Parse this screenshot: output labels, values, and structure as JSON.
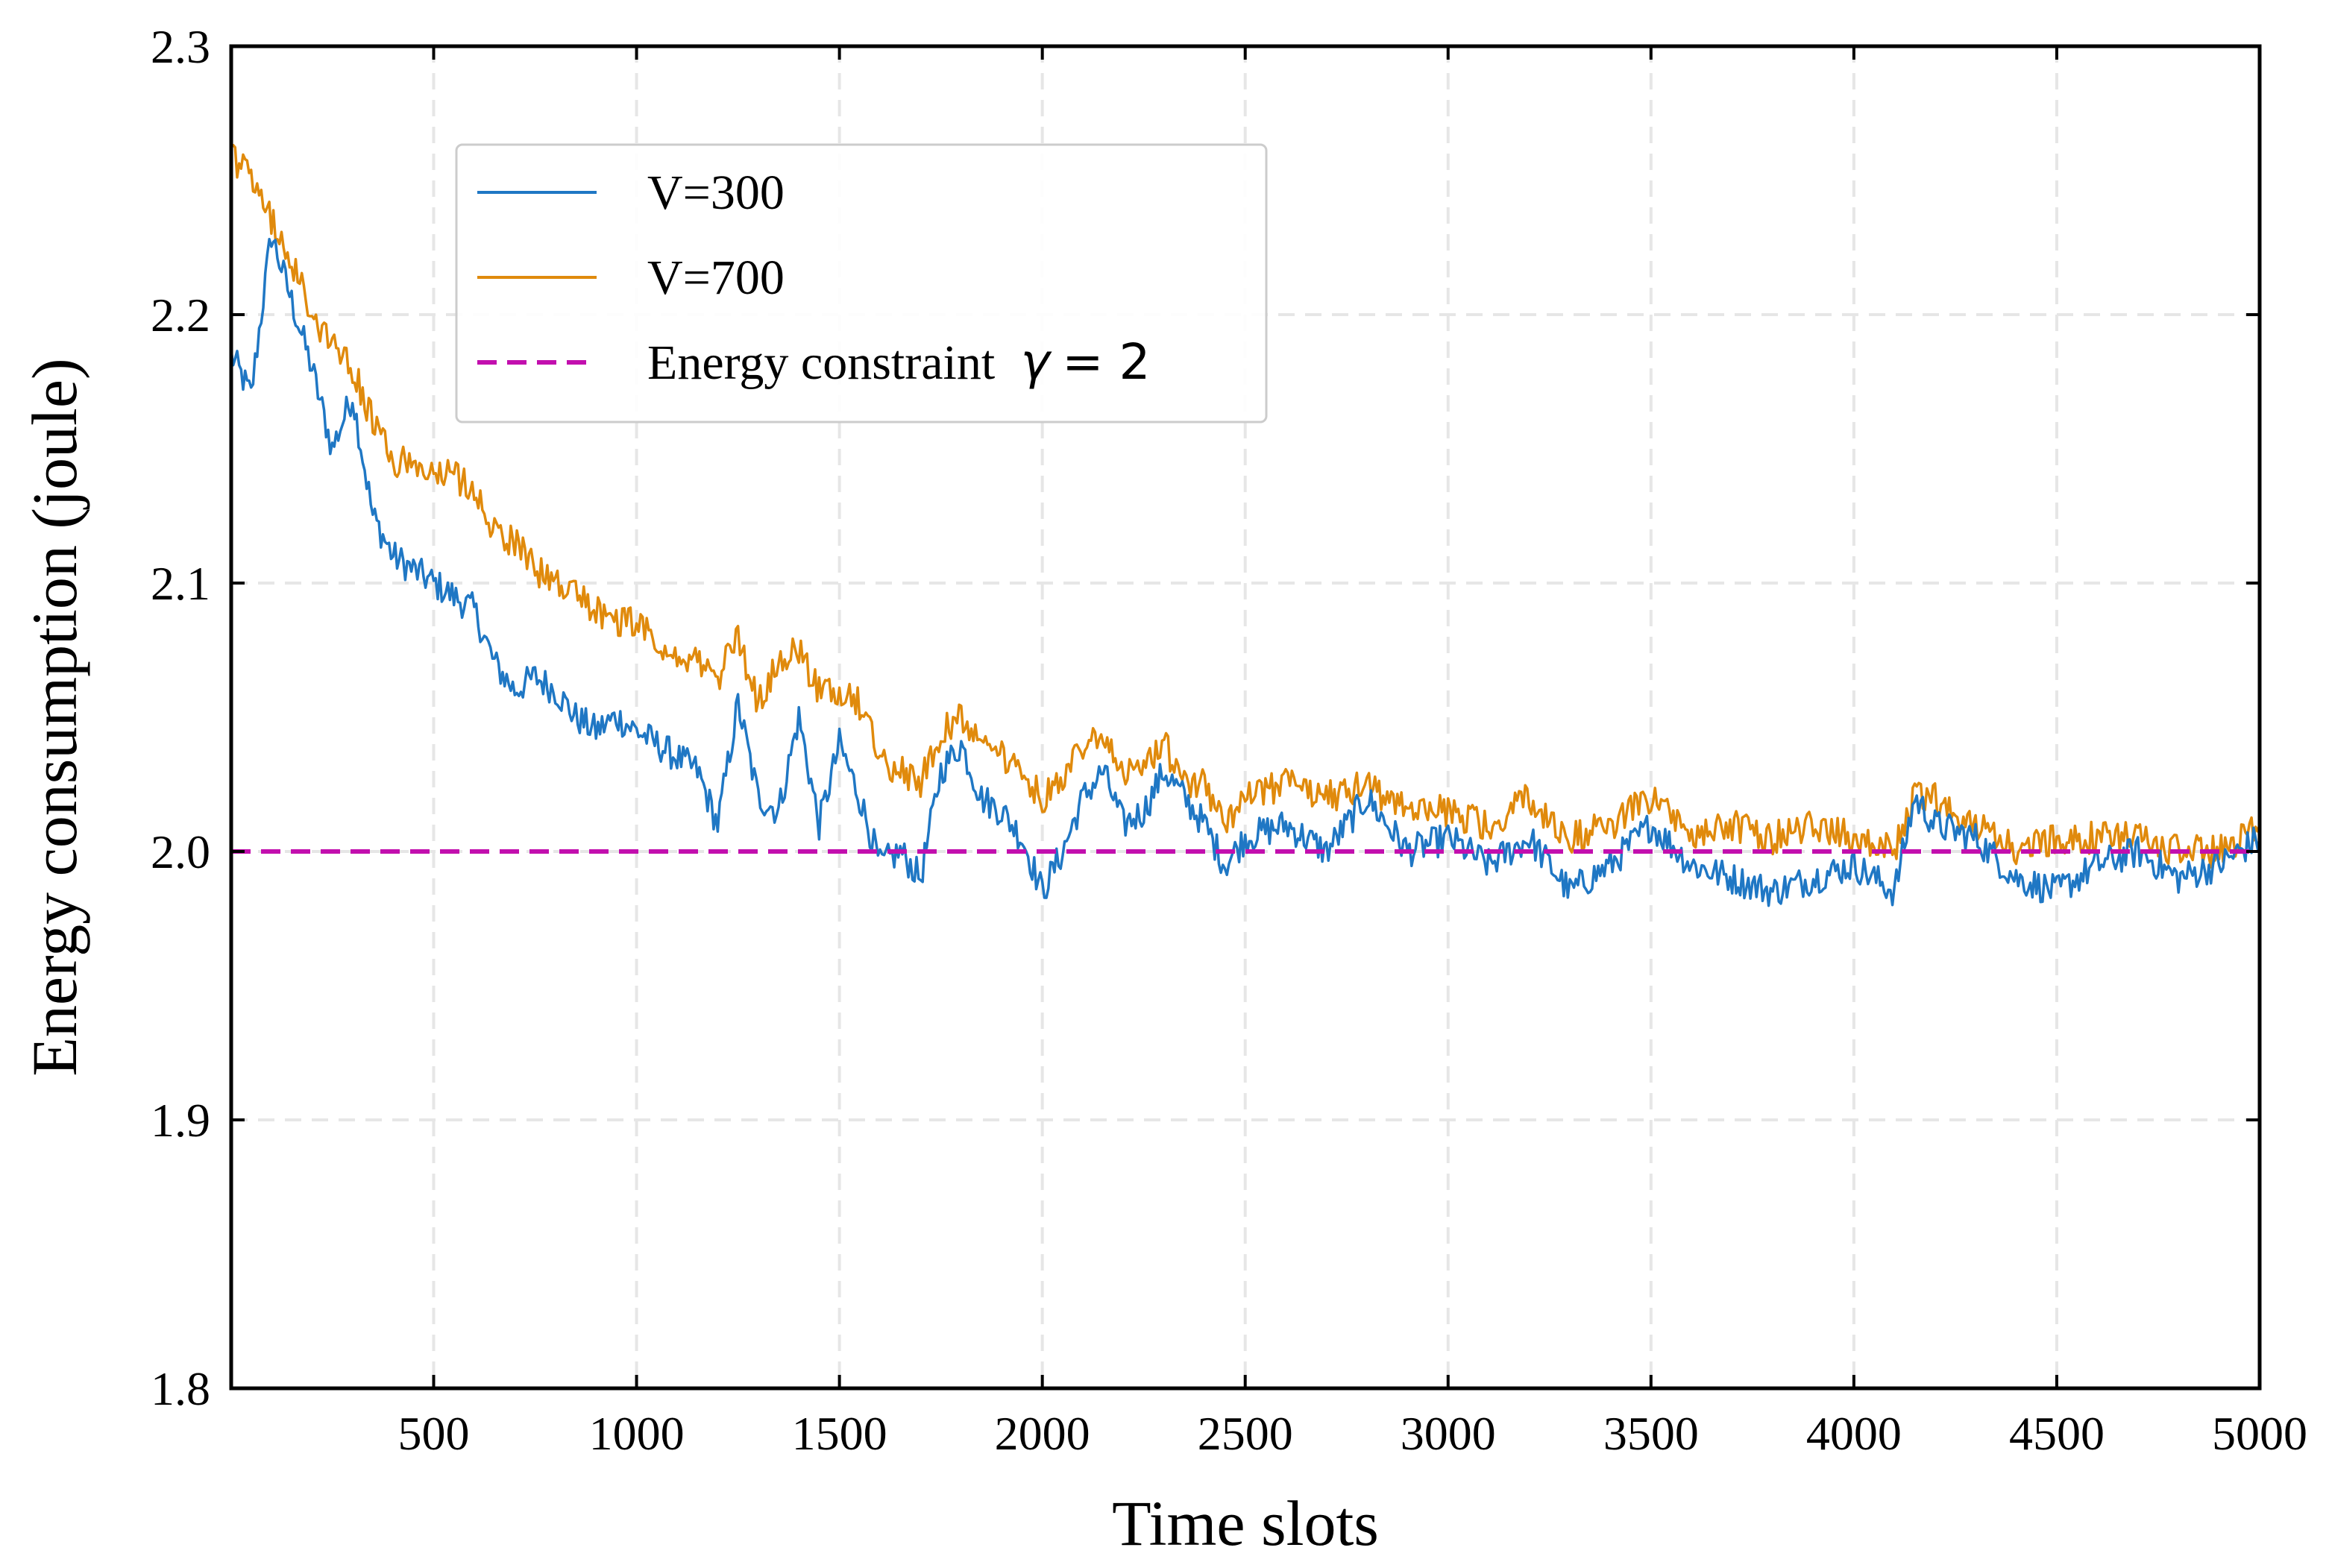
{
  "chart_data": {
    "type": "line",
    "title": "",
    "xlabel": "Time slots",
    "ylabel": "Energy consumption (joule)",
    "xlim": [
      1,
      5000
    ],
    "ylim": [
      1.8,
      2.3
    ],
    "x_ticks": [
      500,
      1000,
      1500,
      2000,
      2500,
      3000,
      3500,
      4000,
      4500,
      5000
    ],
    "x_tick_labels": [
      "500",
      "1000",
      "1500",
      "2000",
      "2500",
      "3000",
      "3500",
      "4000",
      "4500",
      "5000"
    ],
    "y_ticks": [
      1.8,
      1.9,
      2.0,
      2.1,
      2.2,
      2.3
    ],
    "y_tick_labels": [
      "1.8",
      "1.9",
      "2.0",
      "2.1",
      "2.2",
      "2.3"
    ],
    "grid": true,
    "legend_position": "top-left",
    "series": [
      {
        "name": "V=300",
        "color": "#1f77c4",
        "style": "solid",
        "x": [
          1,
          50,
          100,
          150,
          200,
          250,
          300,
          350,
          400,
          450,
          500,
          550,
          600,
          650,
          700,
          750,
          800,
          850,
          900,
          950,
          1000,
          1050,
          1100,
          1150,
          1200,
          1250,
          1300,
          1350,
          1400,
          1450,
          1500,
          1550,
          1600,
          1650,
          1700,
          1750,
          1800,
          1850,
          1900,
          1950,
          2000,
          2050,
          2100,
          2150,
          2200,
          2250,
          2300,
          2350,
          2400,
          2450,
          2500,
          2600,
          2700,
          2800,
          2900,
          3000,
          3100,
          3200,
          3300,
          3400,
          3500,
          3600,
          3700,
          3800,
          3900,
          4000,
          4100,
          4150,
          4200,
          4300,
          4400,
          4500,
          4600,
          4700,
          4800,
          4900,
          5000
        ],
        "y": [
          2.185,
          2.17,
          2.23,
          2.205,
          2.18,
          2.15,
          2.17,
          2.125,
          2.11,
          2.105,
          2.1,
          2.095,
          2.09,
          2.07,
          2.06,
          2.065,
          2.06,
          2.05,
          2.045,
          2.05,
          2.045,
          2.04,
          2.035,
          2.03,
          2.01,
          2.055,
          2.02,
          2.015,
          2.05,
          2.01,
          2.04,
          2.02,
          1.995,
          2.0,
          1.99,
          2.03,
          2.04,
          2.02,
          2.015,
          2.005,
          1.985,
          2.0,
          2.02,
          2.03,
          2.01,
          2.015,
          2.03,
          2.02,
          2.01,
          1.995,
          2.005,
          2.01,
          2.0,
          2.02,
          2.0,
          2.005,
          1.995,
          2.005,
          1.985,
          1.995,
          2.01,
          1.995,
          1.99,
          1.985,
          1.99,
          1.995,
          1.985,
          2.02,
          2.01,
          2.005,
          1.99,
          1.985,
          1.995,
          2.0,
          1.99,
          1.995,
          2.005
        ]
      },
      {
        "name": "V=700",
        "color": "#e08a0c",
        "style": "solid",
        "x": [
          1,
          50,
          100,
          150,
          200,
          250,
          300,
          350,
          400,
          450,
          500,
          550,
          600,
          650,
          700,
          750,
          800,
          850,
          900,
          950,
          1000,
          1050,
          1100,
          1150,
          1200,
          1250,
          1300,
          1350,
          1400,
          1450,
          1500,
          1550,
          1600,
          1650,
          1700,
          1750,
          1800,
          1850,
          1900,
          1950,
          2000,
          2050,
          2100,
          2150,
          2200,
          2250,
          2300,
          2350,
          2400,
          2450,
          2500,
          2600,
          2700,
          2800,
          2900,
          3000,
          3100,
          3200,
          3300,
          3400,
          3500,
          3600,
          3700,
          3800,
          3900,
          4000,
          4100,
          4150,
          4200,
          4300,
          4400,
          4500,
          4600,
          4700,
          4800,
          4900,
          5000
        ],
        "y": [
          2.26,
          2.25,
          2.235,
          2.22,
          2.2,
          2.19,
          2.18,
          2.16,
          2.145,
          2.145,
          2.14,
          2.14,
          2.135,
          2.12,
          2.115,
          2.105,
          2.1,
          2.095,
          2.09,
          2.085,
          2.085,
          2.08,
          2.07,
          2.07,
          2.065,
          2.08,
          2.055,
          2.07,
          2.075,
          2.06,
          2.06,
          2.055,
          2.035,
          2.03,
          2.025,
          2.045,
          2.05,
          2.04,
          2.035,
          2.03,
          2.02,
          2.025,
          2.04,
          2.04,
          2.03,
          2.03,
          2.04,
          2.025,
          2.025,
          2.01,
          2.02,
          2.025,
          2.02,
          2.025,
          2.015,
          2.015,
          2.01,
          2.02,
          2.005,
          2.01,
          2.02,
          2.005,
          2.01,
          2.005,
          2.01,
          2.005,
          2.0,
          2.02,
          2.02,
          2.01,
          2.0,
          2.005,
          2.005,
          2.005,
          2.0,
          2.0,
          2.01
        ]
      },
      {
        "name": "Energy constraint",
        "name_math_var": "γ",
        "name_math_rest": " = 2",
        "color": "#c20fae",
        "style": "dashed",
        "x": [
          1,
          5000
        ],
        "y": [
          2.0,
          2.0
        ]
      }
    ]
  }
}
